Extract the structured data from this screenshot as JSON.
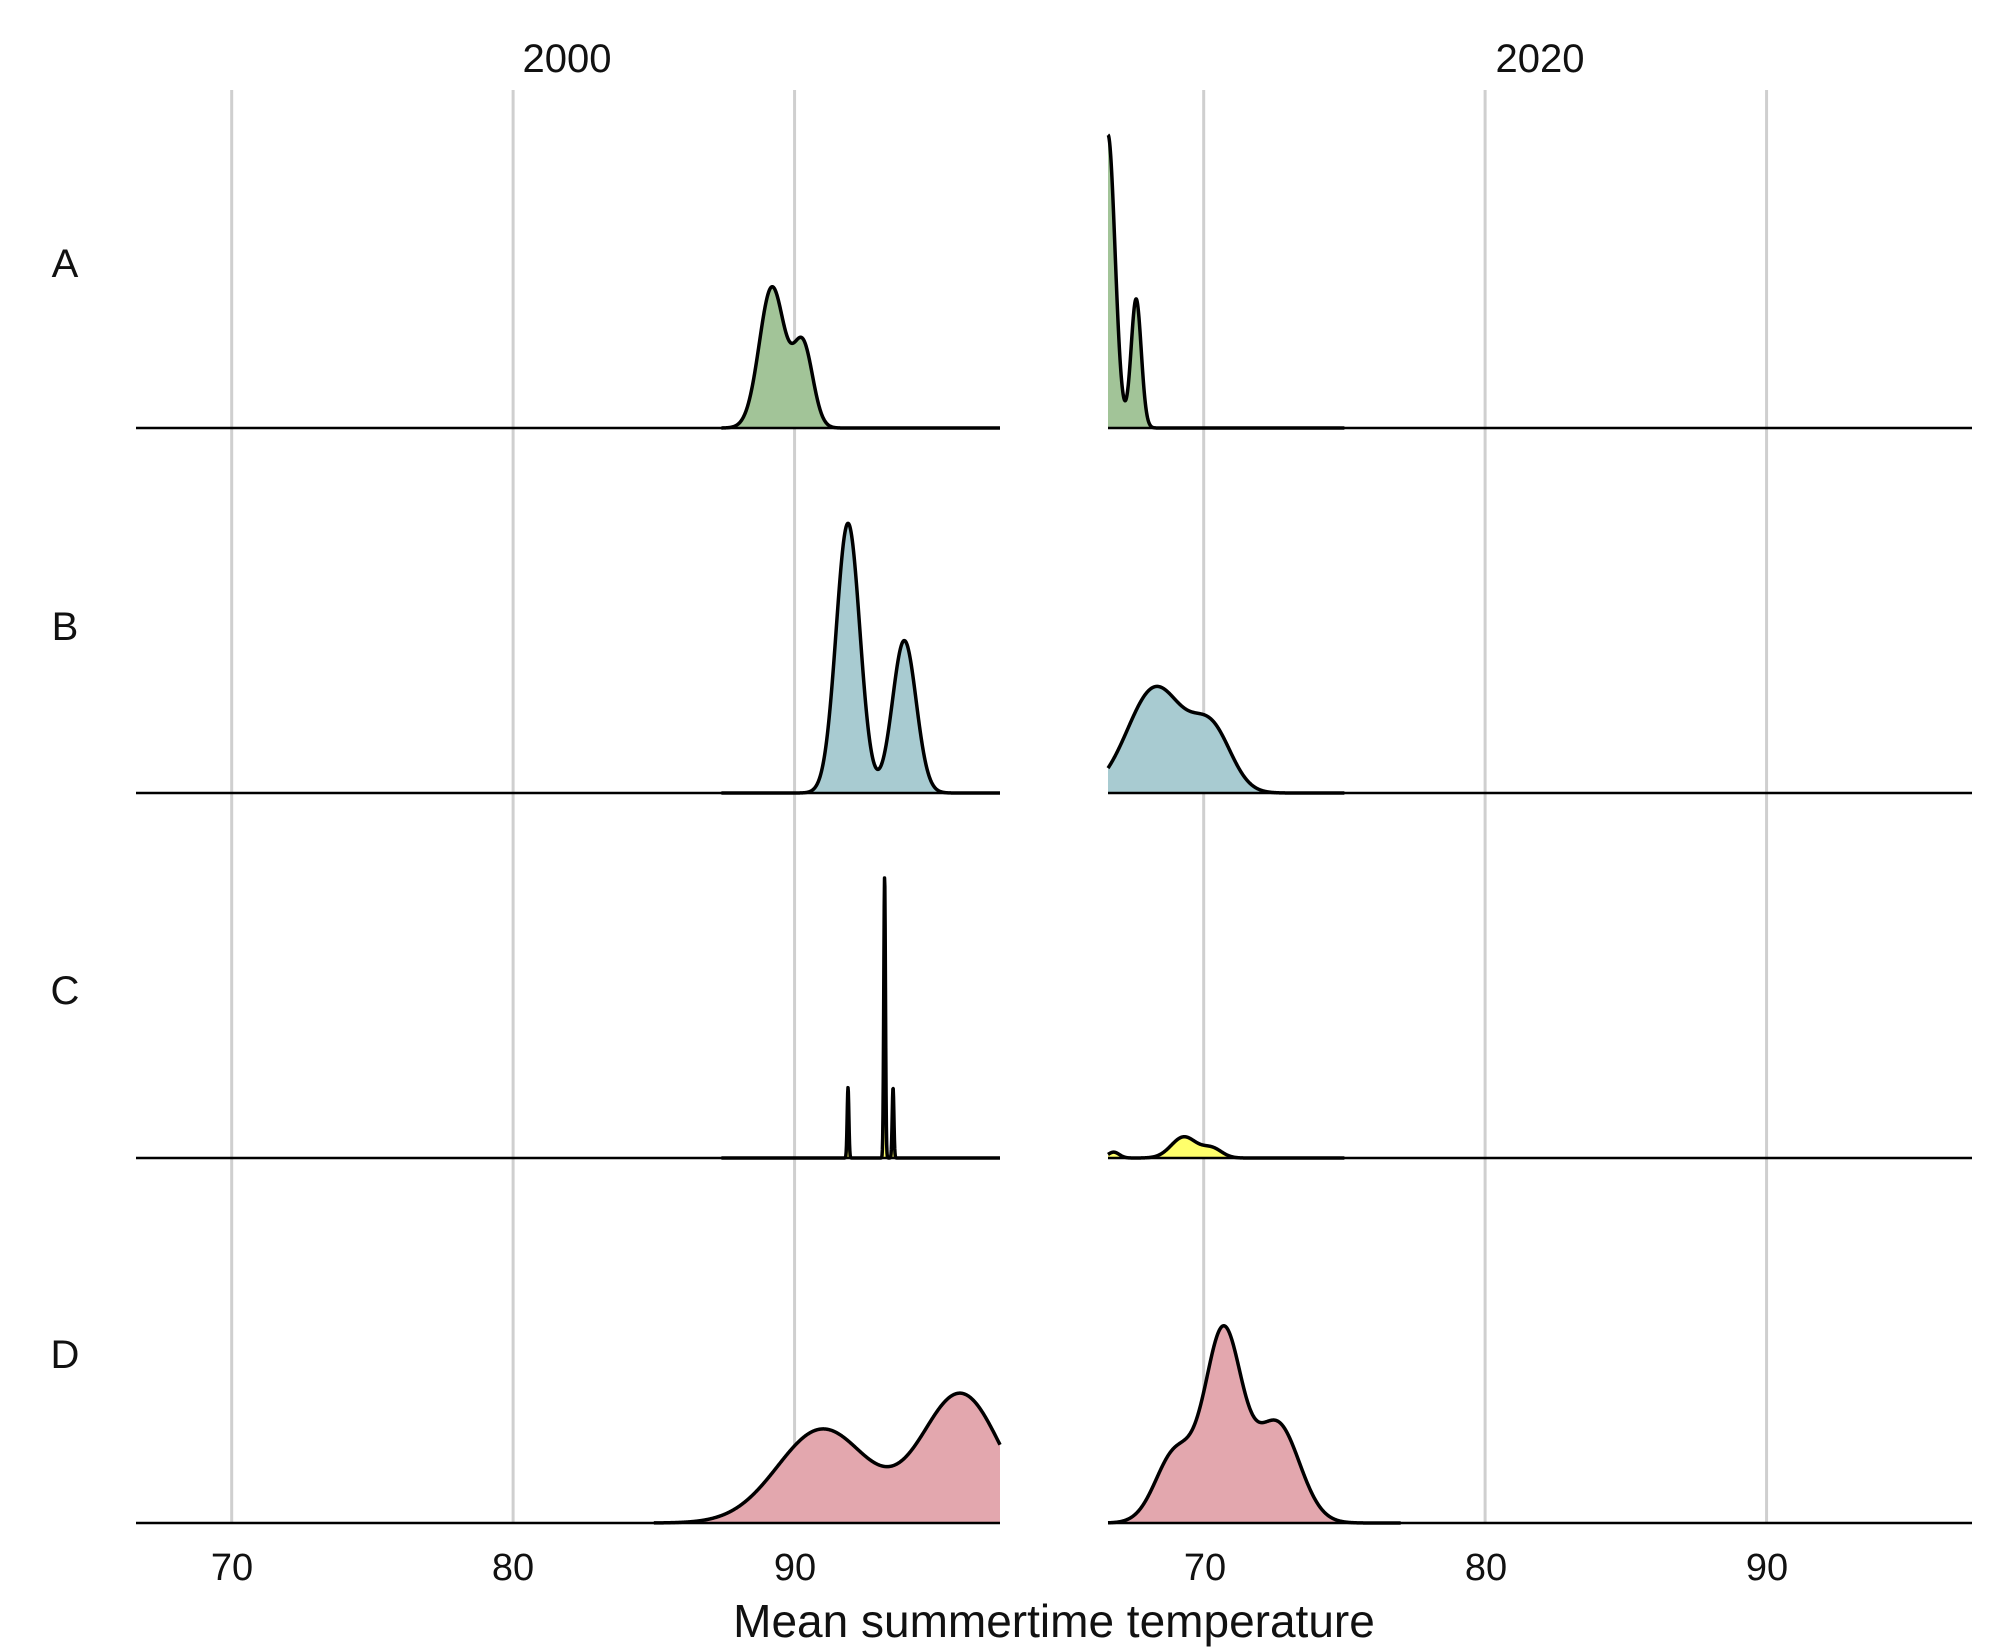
{
  "chart_data": {
    "type": "ridgeline",
    "xlabel": "Mean summertime temperature",
    "facets": [
      "2000",
      "2020"
    ],
    "rows": [
      {
        "label": "A",
        "color": "#a2c498"
      },
      {
        "label": "B",
        "color": "#a8cbd1"
      },
      {
        "label": "C",
        "color": "#ffff6b"
      },
      {
        "label": "D",
        "color": "#e3a7ae"
      }
    ],
    "x_ticks": [
      70,
      80,
      90
    ],
    "xlim": [
      66.6,
      97.3
    ],
    "density_max": 2.9,
    "panels": {
      "2000": {
        "A": {
          "range": [
            87.4,
            97.3
          ],
          "components": [
            [
              89.2,
              0.45,
              1.2
            ],
            [
              90.3,
              0.35,
              0.7
            ]
          ]
        },
        "B": {
          "range": [
            87.4,
            97.3
          ],
          "components": [
            [
              91.9,
              0.42,
              2.3
            ],
            [
              93.9,
              0.42,
              1.3
            ]
          ]
        },
        "C": {
          "range": [
            87.4,
            97.3
          ],
          "components": [
            [
              91.9,
              0.03,
              0.6
            ],
            [
              93.2,
              0.03,
              2.4
            ],
            [
              93.5,
              0.03,
              0.6
            ]
          ]
        },
        "D": {
          "range": [
            85.0,
            97.3
          ],
          "components": [
            [
              91.0,
              1.6,
              0.8
            ],
            [
              95.9,
              1.4,
              1.1
            ]
          ]
        }
      },
      "2020": {
        "A": {
          "range": [
            66.6,
            75.0
          ],
          "components": [
            [
              66.6,
              0.25,
              2.5
            ],
            [
              67.6,
              0.18,
              1.1
            ]
          ]
        },
        "B": {
          "range": [
            66.6,
            75.0
          ],
          "components": [
            [
              68.3,
              1.0,
              0.9
            ],
            [
              70.3,
              0.7,
              0.5
            ]
          ]
        },
        "C": {
          "range": [
            66.6,
            75.0
          ],
          "components": [
            [
              66.8,
              0.2,
              0.05
            ],
            [
              69.3,
              0.45,
              0.18
            ],
            [
              70.3,
              0.35,
              0.08
            ]
          ]
        },
        "D": {
          "range": [
            66.6,
            77.0
          ],
          "components": [
            [
              69.0,
              0.7,
              0.6
            ],
            [
              70.7,
              0.65,
              1.6
            ],
            [
              72.6,
              0.8,
              0.85
            ]
          ]
        }
      }
    }
  }
}
